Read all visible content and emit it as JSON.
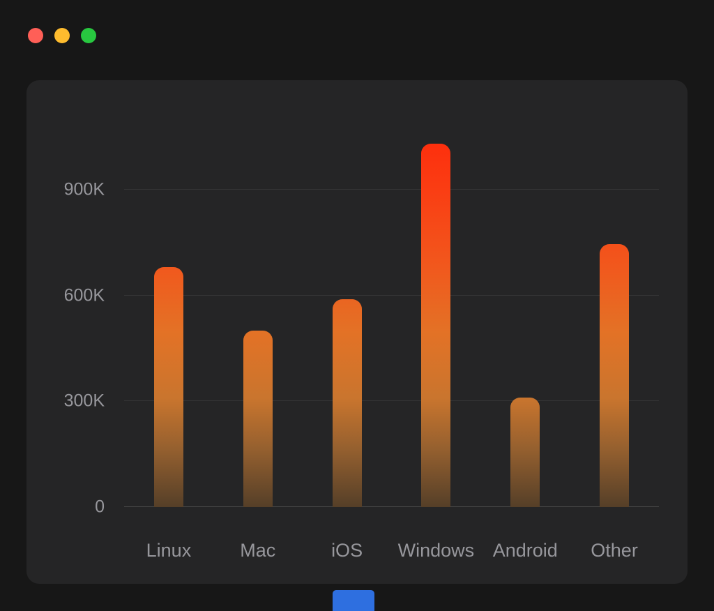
{
  "window": {
    "titlebar": {
      "buttons": [
        {
          "name": "close",
          "color": "#ff5f57"
        },
        {
          "name": "minimize",
          "color": "#febc2e"
        },
        {
          "name": "zoom",
          "color": "#28c840"
        }
      ]
    }
  },
  "theme": {
    "background": "#171717",
    "panel_background": "#252526",
    "gridline_color": "rgba(255,255,255,0.07)",
    "axis_color": "rgba(255,255,255,0.16)",
    "label_color": "#97979c",
    "bar_gradient": [
      "#ff280a 0%",
      "#fa3d13 18%",
      "#f1581d 38%",
      "#e37226 55%",
      "#c9752e 72%",
      "#95602f 85%",
      "#553f28 100%"
    ],
    "peek_color": "#2e6fe0"
  },
  "chart_data": {
    "type": "bar",
    "categories": [
      "Linux",
      "Mac",
      "iOS",
      "Windows",
      "Android",
      "Other"
    ],
    "values": [
      680000,
      500000,
      590000,
      1030000,
      310000,
      745000
    ],
    "title": "",
    "xlabel": "",
    "ylabel": "",
    "ylim": [
      0,
      1100000
    ],
    "yticks": [
      {
        "value": 0,
        "label": "0"
      },
      {
        "value": 300000,
        "label": "300K"
      },
      {
        "value": 600000,
        "label": "600K"
      },
      {
        "value": 900000,
        "label": "900K"
      }
    ],
    "grid": true,
    "legend": false
  }
}
